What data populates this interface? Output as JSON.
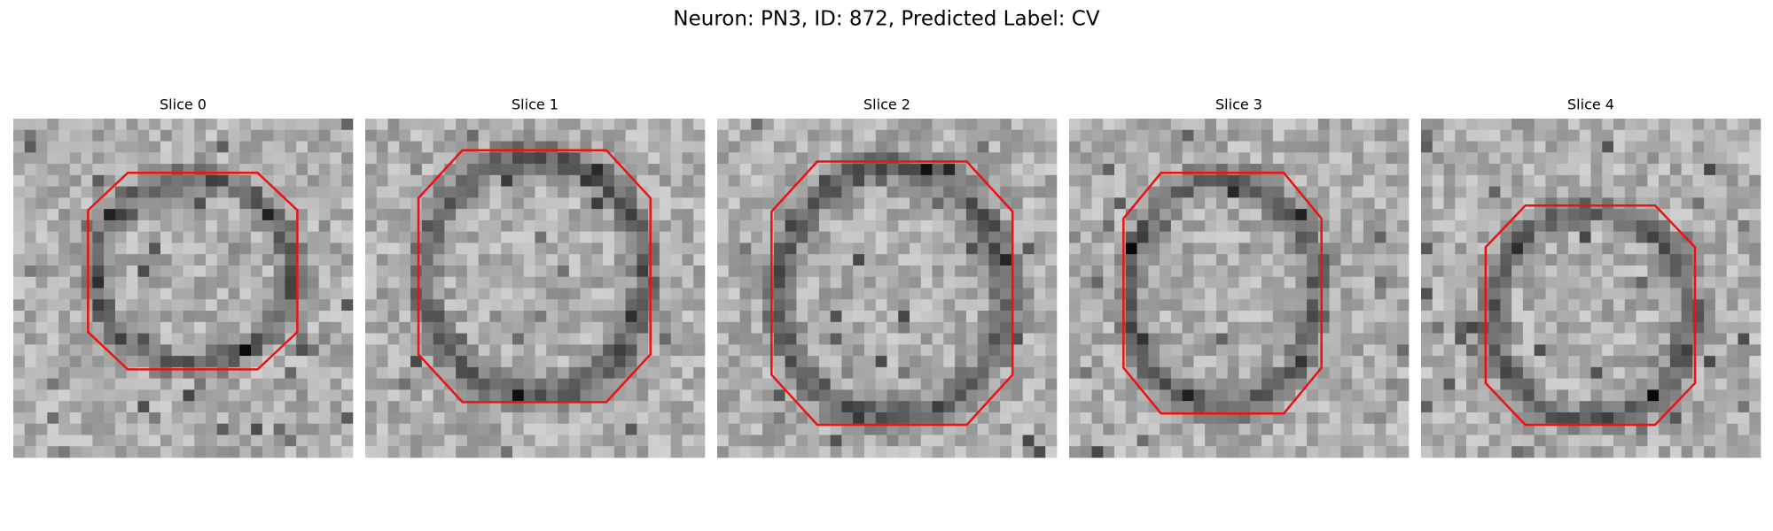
{
  "title": "Neuron: PN3, ID: 872, Predicted Label: CV",
  "panels": [
    {
      "title": "Slice 0"
    },
    {
      "title": "Slice 1"
    },
    {
      "title": "Slice 2"
    },
    {
      "title": "Slice 3"
    },
    {
      "title": "Slice 4"
    }
  ]
}
